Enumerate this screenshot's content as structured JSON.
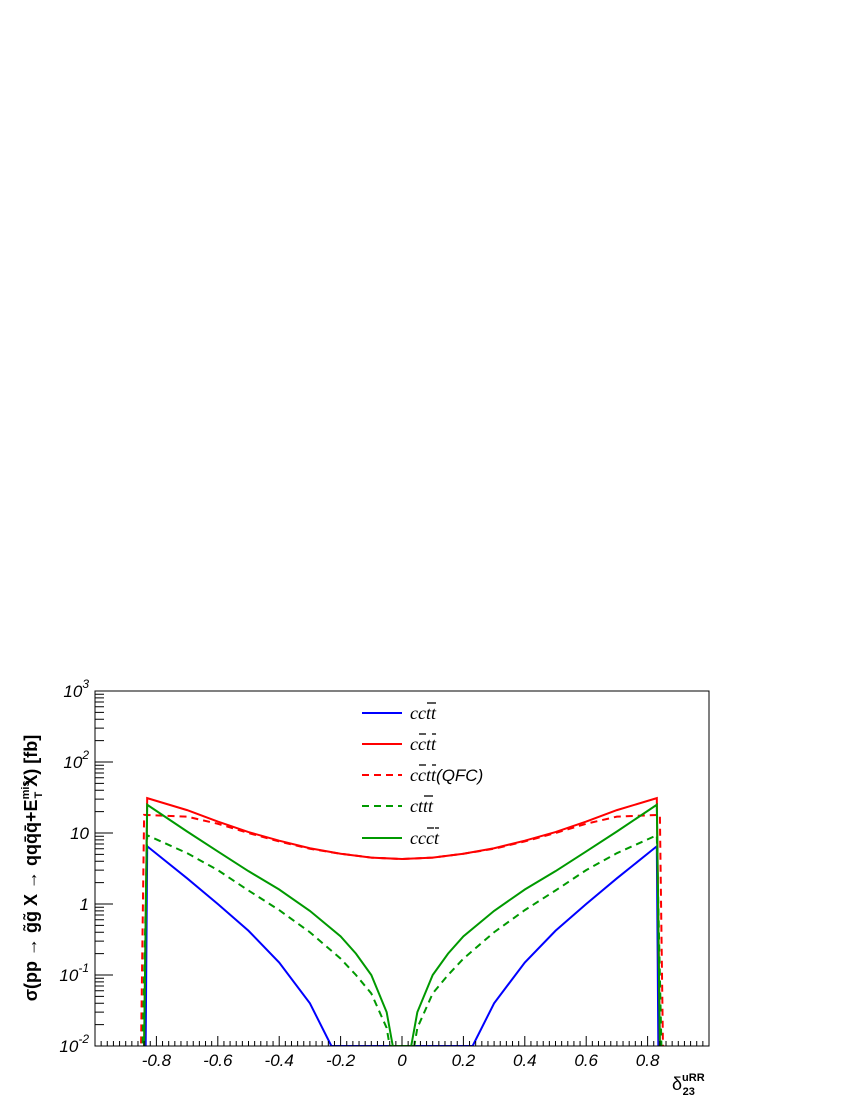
{
  "chart_data": {
    "type": "line",
    "ylabel": "σ(pp → g̃g̃ X → qqq̄q̄+E_T^mis X) [fb]",
    "ylabel_parts": {
      "main": "σ(pp → ",
      "gg": "g̃g̃",
      "mid": " X → qq",
      "qbar": "q̄q̄",
      "plus": "+E",
      "sup": "mis",
      "sub": "T",
      "tail": " X) [fb]"
    },
    "xlabel_parts": {
      "base": "δ",
      "sup": "uRR",
      "sub": "23"
    },
    "xlim": [
      -1.0,
      1.0
    ],
    "ylim": [
      0.01,
      1000
    ],
    "yscale": "log",
    "x_ticks": [
      {
        "v": -0.8,
        "label": "-0.8"
      },
      {
        "v": -0.6,
        "label": "-0.6"
      },
      {
        "v": -0.4,
        "label": "-0.4"
      },
      {
        "v": -0.2,
        "label": "-0.2"
      },
      {
        "v": 0,
        "label": "0"
      },
      {
        "v": 0.2,
        "label": "0.2"
      },
      {
        "v": 0.4,
        "label": "0.4"
      },
      {
        "v": 0.6,
        "label": "0.6"
      },
      {
        "v": 0.8,
        "label": "0.8"
      }
    ],
    "y_ticks": [
      {
        "v": 0.01,
        "base": "10",
        "exp": "-2"
      },
      {
        "v": 0.1,
        "base": "10",
        "exp": "-1"
      },
      {
        "v": 1,
        "base": "1",
        "exp": ""
      },
      {
        "v": 10,
        "base": "10",
        "exp": ""
      },
      {
        "v": 100,
        "base": "10",
        "exp": "2"
      },
      {
        "v": 1000,
        "base": "10",
        "exp": "3"
      }
    ],
    "legend_position": "top-center",
    "series": [
      {
        "name": "cc t̄t̄",
        "legend": {
          "pre": "cc",
          "bar": "tt",
          "post": ""
        },
        "color": "#0000ff",
        "dash": false,
        "x": [
          -0.85,
          -0.835,
          -0.83,
          -0.7,
          -0.6,
          -0.5,
          -0.4,
          -0.3,
          -0.23,
          0.23,
          0.3,
          0.4,
          0.5,
          0.6,
          0.7,
          0.83,
          0.835,
          0.85
        ],
        "y": [
          0.005,
          0.01,
          6.5,
          2.3,
          1.0,
          0.42,
          0.15,
          0.04,
          0.01,
          0.01,
          0.04,
          0.15,
          0.42,
          1.0,
          2.3,
          6.5,
          0.01,
          0.005
        ]
      },
      {
        "name": "c c̄ t t̄",
        "legend": {
          "pre": "c",
          "bar": "c",
          "post": "t",
          "bar2": "t"
        },
        "color": "#ff0000",
        "dash": false,
        "x": [
          -0.845,
          -0.84,
          -0.83,
          -0.7,
          -0.6,
          -0.5,
          -0.4,
          -0.3,
          -0.2,
          -0.1,
          0,
          0.1,
          0.2,
          0.3,
          0.4,
          0.5,
          0.6,
          0.7,
          0.83,
          0.84,
          0.845
        ],
        "y": [
          0.005,
          0.01,
          31,
          21,
          14.5,
          10.3,
          7.8,
          6.1,
          5.1,
          4.5,
          4.3,
          4.5,
          5.1,
          6.1,
          7.8,
          10.3,
          14.5,
          21,
          31,
          0.01,
          0.005
        ]
      },
      {
        "name": "c c̄ t t̄ (QFC)",
        "legend": {
          "pre": "c",
          "bar": "c",
          "post": "t",
          "bar2": "t",
          "suffix": " (QFC)"
        },
        "color": "#ff0000",
        "dash": true,
        "x": [
          -0.855,
          -0.85,
          -0.84,
          -0.7,
          -0.6,
          -0.5,
          -0.4,
          -0.3,
          -0.2,
          -0.1,
          0,
          0.1,
          0.2,
          0.3,
          0.4,
          0.5,
          0.6,
          0.7,
          0.84,
          0.85,
          0.855
        ],
        "y": [
          0.005,
          0.01,
          18,
          17,
          13.5,
          10,
          7.6,
          6.0,
          5.1,
          4.5,
          4.3,
          4.5,
          5.1,
          6.0,
          7.6,
          10,
          13.5,
          17,
          18,
          0.01,
          0.005
        ]
      },
      {
        "name": "c t t̄ t̄",
        "legend": {
          "pre": "ct",
          "bar": "tt",
          "post": ""
        },
        "color": "#009900",
        "dash": true,
        "x": [
          -0.85,
          -0.845,
          -0.83,
          -0.7,
          -0.6,
          -0.5,
          -0.4,
          -0.3,
          -0.2,
          -0.15,
          -0.1,
          -0.05,
          -0.04,
          0.04,
          0.05,
          0.1,
          0.15,
          0.2,
          0.3,
          0.4,
          0.5,
          0.6,
          0.7,
          0.83,
          0.845,
          0.85
        ],
        "y": [
          0.005,
          0.01,
          9.3,
          5.2,
          3.0,
          1.55,
          0.82,
          0.4,
          0.17,
          0.1,
          0.055,
          0.018,
          0.01,
          0.01,
          0.018,
          0.055,
          0.1,
          0.17,
          0.4,
          0.82,
          1.55,
          3.0,
          5.2,
          9.3,
          0.01,
          0.005
        ]
      },
      {
        "name": "c c c̄ t̄",
        "legend": {
          "pre": "cc",
          "bar": "c",
          "post": "",
          "bar2": "t"
        },
        "color": "#009900",
        "dash": false,
        "x": [
          -0.85,
          -0.84,
          -0.83,
          -0.7,
          -0.6,
          -0.5,
          -0.4,
          -0.3,
          -0.2,
          -0.15,
          -0.1,
          -0.05,
          -0.03,
          0.03,
          0.05,
          0.1,
          0.15,
          0.2,
          0.3,
          0.4,
          0.5,
          0.6,
          0.7,
          0.83,
          0.84,
          0.85
        ],
        "y": [
          0.005,
          0.01,
          25,
          10.5,
          5.5,
          2.9,
          1.6,
          0.8,
          0.35,
          0.2,
          0.1,
          0.03,
          0.01,
          0.01,
          0.03,
          0.1,
          0.2,
          0.35,
          0.8,
          1.6,
          2.9,
          5.5,
          10.5,
          25,
          0.01,
          0.005
        ]
      }
    ]
  }
}
